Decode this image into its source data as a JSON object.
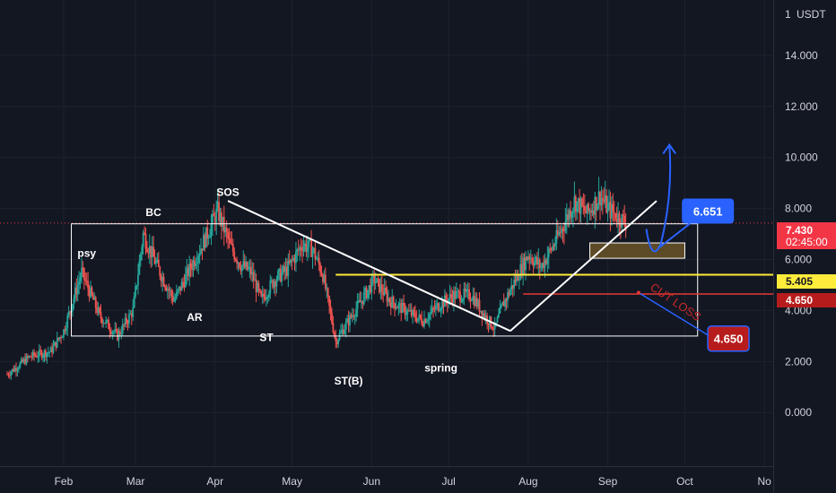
{
  "chart_data": {
    "type": "candlestick",
    "currency": "USDT",
    "scale_label": "1",
    "y_ticks": [
      0,
      2,
      4,
      6,
      8,
      10,
      12,
      14
    ],
    "y_tick_labels": [
      "0.000",
      "2.000",
      "4.000",
      "6.000",
      "8.000",
      "10.000",
      "12.000",
      "14.000"
    ],
    "ylim": [
      -2.1,
      16.0
    ],
    "x_months": [
      {
        "label": "Feb",
        "t": 31
      },
      {
        "label": "Mar",
        "t": 59
      },
      {
        "label": "Apr",
        "t": 90
      },
      {
        "label": "May",
        "t": 120
      },
      {
        "label": "Jun",
        "t": 151
      },
      {
        "label": "Jul",
        "t": 181
      },
      {
        "label": "Aug",
        "t": 212
      },
      {
        "label": "Sep",
        "t": 243
      },
      {
        "label": "Oct",
        "t": 273
      },
      {
        "label": "No",
        "t": 304
      }
    ],
    "xlim_days": [
      9,
      305
    ],
    "price_path": [
      [
        9,
        1.5
      ],
      [
        18,
        2.2
      ],
      [
        26,
        2.4
      ],
      [
        31,
        3.2
      ],
      [
        38,
        5.5
      ],
      [
        45,
        3.8
      ],
      [
        52,
        3.0
      ],
      [
        58,
        4.0
      ],
      [
        62,
        7.0
      ],
      [
        68,
        5.6
      ],
      [
        74,
        4.4
      ],
      [
        80,
        5.6
      ],
      [
        86,
        6.8
      ],
      [
        91,
        7.9
      ],
      [
        96,
        6.5
      ],
      [
        100,
        5.8
      ],
      [
        104,
        5.5
      ],
      [
        108,
        4.4
      ],
      [
        113,
        5.2
      ],
      [
        118,
        5.6
      ],
      [
        124,
        6.6
      ],
      [
        128,
        6.4
      ],
      [
        132,
        5.4
      ],
      [
        137,
        2.8
      ],
      [
        142,
        3.6
      ],
      [
        147,
        4.4
      ],
      [
        152,
        5.2
      ],
      [
        158,
        4.4
      ],
      [
        164,
        4.0
      ],
      [
        171,
        3.6
      ],
      [
        177,
        4.2
      ],
      [
        183,
        4.6
      ],
      [
        190,
        4.6
      ],
      [
        195,
        3.8
      ],
      [
        199,
        3.3
      ],
      [
        202,
        4.2
      ],
      [
        206,
        5.0
      ],
      [
        212,
        6.2
      ],
      [
        217,
        5.7
      ],
      [
        222,
        6.6
      ],
      [
        226,
        7.4
      ],
      [
        230,
        8.3
      ],
      [
        235,
        7.8
      ],
      [
        240,
        8.5
      ],
      [
        243,
        8.0
      ],
      [
        248,
        7.6
      ],
      [
        250,
        7.43
      ]
    ],
    "annotations": [
      {
        "text": "psy",
        "t": 40,
        "y": 6.1
      },
      {
        "text": "BC",
        "t": 66,
        "y": 7.7
      },
      {
        "text": "SOS",
        "t": 95,
        "y": 8.5
      },
      {
        "text": "AR",
        "t": 82,
        "y": 3.6
      },
      {
        "text": "ST",
        "t": 110,
        "y": 2.8
      },
      {
        "text": "ST(B)",
        "t": 142,
        "y": 1.1
      },
      {
        "text": "spring",
        "t": 178,
        "y": 1.6
      }
    ],
    "range_box": {
      "t1": 34,
      "t2": 278,
      "y1": 3.0,
      "y2": 7.4
    },
    "trend_down": {
      "t1": 95,
      "y1": 8.3,
      "t2": 205,
      "y2": 3.2
    },
    "trend_up": {
      "t1": 205,
      "y1": 3.2,
      "t2": 262,
      "y2": 8.3
    },
    "support_zone": {
      "t1": 236,
      "t2": 273,
      "y1": 6.05,
      "y2": 6.65
    },
    "arrow_up": {
      "t0": 258,
      "y0": 7.2,
      "tt": 267,
      "yt": 10.5
    },
    "lines": {
      "current": {
        "value": 7.43,
        "color": "#f23645"
      },
      "yellow": {
        "value": 5.405,
        "color": "#ffeb3b",
        "t_start": 137
      },
      "red": {
        "value": 4.65,
        "color": "#e53935",
        "t_start": 210
      }
    },
    "badges": {
      "current_value": "7.430",
      "current_timer": "02:45:00",
      "yellow_value": "5.405",
      "red_value": "4.650",
      "target_value": "6.651",
      "cut_value": "4.650"
    },
    "target_label": {
      "t": 282,
      "y": 7.9
    },
    "cut_label": {
      "t": 290,
      "y": 2.9
    },
    "cut_text": "CUT LOSS",
    "cut_line": {
      "t1": 255,
      "y1": 4.7,
      "t2": 280,
      "y2": 3.2
    },
    "colors": {
      "background": "#131722",
      "up": "#26a69a",
      "down": "#ef5350",
      "grid": "#1e222d",
      "blue": "#2962ff",
      "badge_red": "#b71c1c"
    }
  }
}
